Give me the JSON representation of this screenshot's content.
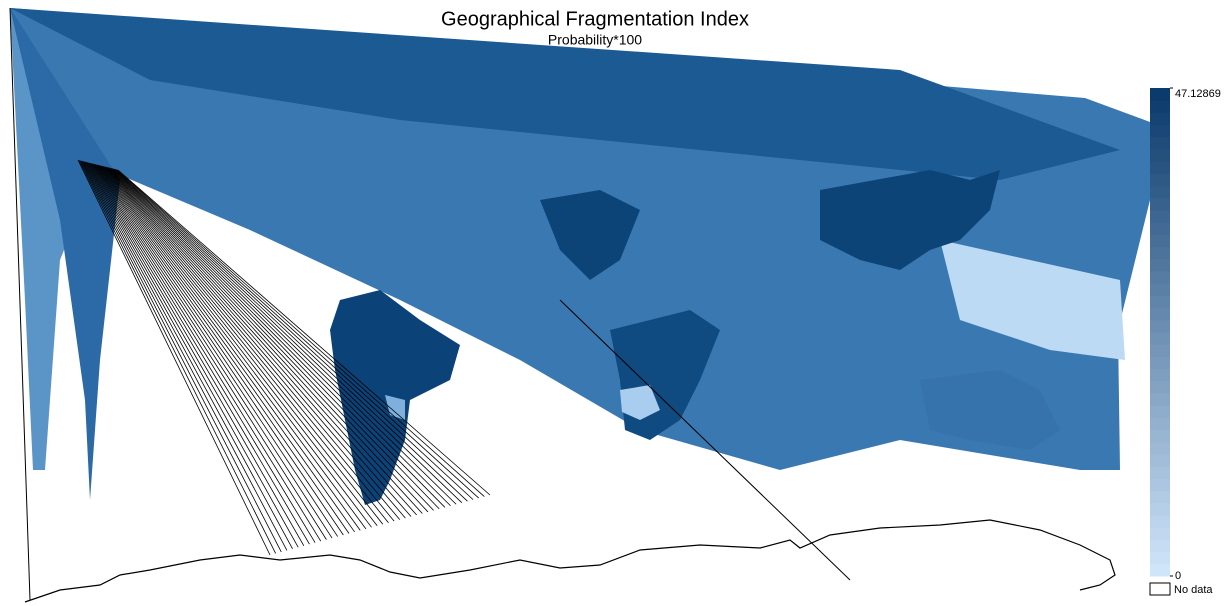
{
  "title": "Geographical Fragmentation Index",
  "subtitle": "Probability*100",
  "legend": {
    "max": 47.12869,
    "min": 0,
    "low_color": "#d2e7fc",
    "high_color": "#08386a",
    "no_data_label": "No data"
  }
}
